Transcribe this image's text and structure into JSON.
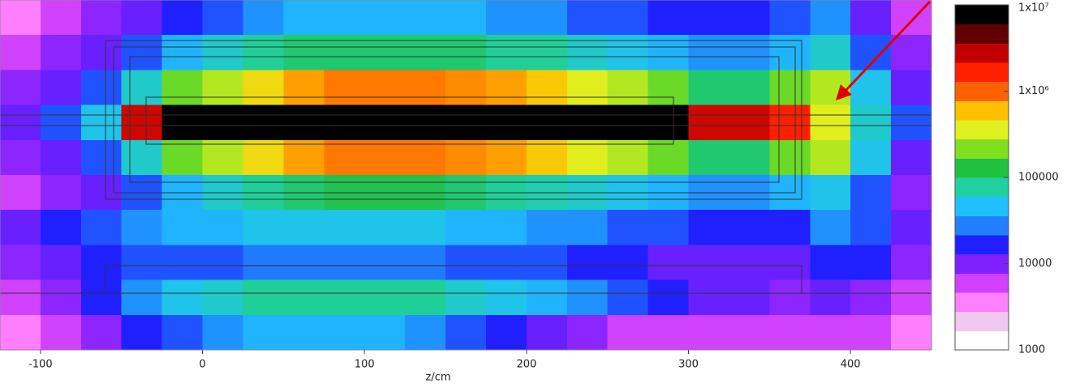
{
  "chart_data": {
    "type": "heatmap",
    "x_label": "z/cm",
    "xlim": [
      -125,
      450
    ],
    "xticks": [
      -100,
      0,
      100,
      200,
      300,
      400
    ],
    "x_edges": [
      -125,
      -100,
      -75,
      -50,
      -25,
      0,
      25,
      50,
      75,
      100,
      125,
      150,
      175,
      200,
      225,
      250,
      275,
      300,
      325,
      350,
      375,
      400,
      425,
      450
    ],
    "z": [
      [
        3000,
        5000,
        8000,
        10000,
        15000,
        20000,
        30000,
        40000,
        40000,
        40000,
        40000,
        40000,
        30000,
        30000,
        20000,
        20000,
        15000,
        15000,
        15000,
        20000,
        30000,
        10000,
        5000
      ],
      [
        5000,
        8000,
        10000,
        20000,
        40000,
        60000,
        80000,
        100000,
        100000,
        100000,
        100000,
        100000,
        80000,
        80000,
        60000,
        50000,
        40000,
        30000,
        30000,
        40000,
        60000,
        20000,
        8000
      ],
      [
        8000,
        10000,
        20000,
        60000,
        200000,
        300000,
        500000,
        800000,
        1000000,
        1000000,
        1000000,
        900000,
        800000,
        600000,
        400000,
        300000,
        200000,
        100000,
        100000,
        200000,
        300000,
        50000,
        10000
      ],
      [
        10000,
        20000,
        50000,
        3000000,
        10000000,
        10000000,
        10000000,
        10000000,
        10000000,
        10000000,
        10000000,
        10000000,
        10000000,
        10000000,
        10000000,
        10000000,
        10000000,
        3000000,
        3000000,
        2000000,
        400000,
        60000,
        20000
      ],
      [
        8000,
        10000,
        20000,
        60000,
        200000,
        300000,
        500000,
        800000,
        1000000,
        1000000,
        1000000,
        900000,
        800000,
        600000,
        400000,
        300000,
        200000,
        100000,
        100000,
        200000,
        300000,
        50000,
        10000
      ],
      [
        5000,
        8000,
        10000,
        20000,
        40000,
        60000,
        80000,
        100000,
        120000,
        120000,
        120000,
        100000,
        80000,
        70000,
        60000,
        50000,
        40000,
        30000,
        30000,
        40000,
        50000,
        20000,
        8000
      ],
      [
        10000,
        15000,
        20000,
        30000,
        40000,
        40000,
        50000,
        50000,
        50000,
        50000,
        50000,
        40000,
        40000,
        30000,
        30000,
        20000,
        20000,
        15000,
        15000,
        15000,
        30000,
        20000,
        10000
      ],
      [
        8000,
        10000,
        15000,
        20000,
        20000,
        20000,
        25000,
        25000,
        25000,
        25000,
        25000,
        20000,
        20000,
        20000,
        15000,
        15000,
        10000,
        10000,
        10000,
        10000,
        15000,
        15000,
        8000
      ],
      [
        5000,
        8000,
        15000,
        30000,
        50000,
        60000,
        80000,
        80000,
        80000,
        80000,
        80000,
        60000,
        50000,
        40000,
        30000,
        20000,
        15000,
        10000,
        10000,
        8000,
        10000,
        8000,
        5000
      ],
      [
        3000,
        5000,
        8000,
        15000,
        20000,
        30000,
        40000,
        40000,
        40000,
        40000,
        30000,
        20000,
        15000,
        10000,
        8000,
        5000,
        5000,
        5000,
        5000,
        5000,
        5000,
        5000,
        3000
      ]
    ],
    "zscale": "log",
    "zlim": [
      1000,
      10000000
    ],
    "zticks": [
      {
        "value": 10000000,
        "label": "1x10⁷"
      },
      {
        "value": 1000000,
        "label": "1x10⁶"
      },
      100000,
      10000,
      1000
    ],
    "colormap": [
      "#ffffff",
      "#f0c8f0",
      "#ff80ff",
      "#d040ff",
      "#8020ff",
      "#2020ff",
      "#2080ff",
      "#20c0ff",
      "#20d0a0",
      "#20c040",
      "#80e020",
      "#e0f020",
      "#ffc000",
      "#ff6000",
      "#ff2000",
      "#c00000",
      "#600000",
      "#000000"
    ]
  }
}
